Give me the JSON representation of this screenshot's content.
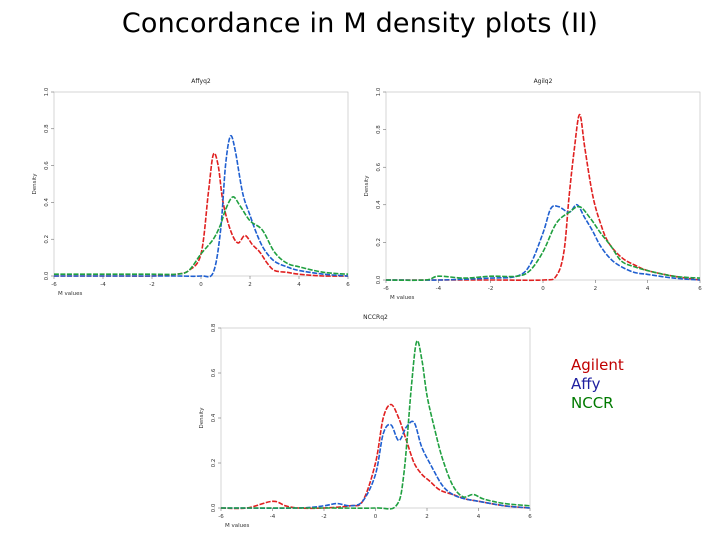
{
  "slide": {
    "title": "Concordance in M density plots (II)"
  },
  "legend": {
    "items": [
      {
        "label": "Agilent",
        "color": "#c00000"
      },
      {
        "label": "Affy",
        "color": "#2020a0"
      },
      {
        "label": "NCCR",
        "color": "#007a00"
      }
    ]
  },
  "colors": {
    "agilent": "#e02020",
    "affy": "#1f5fd0",
    "nccr": "#20a040"
  },
  "chart_data": [
    {
      "type": "line",
      "title": "Affyq2",
      "xlabel": "M values",
      "ylabel": "Density",
      "xlim": [
        -6,
        6
      ],
      "ylim": [
        0,
        1.0
      ],
      "xticks": [
        "-6",
        "-4",
        "-2",
        "0",
        "2",
        "4",
        "6"
      ],
      "yticks": [
        "0.0",
        "0.2",
        "0.4",
        "0.6",
        "0.8",
        "1.0"
      ],
      "series": [
        {
          "name": "Agilent",
          "color": "#e02020",
          "x": [
            -6,
            -5,
            -4,
            -3,
            -2,
            -1,
            -0.5,
            0,
            0.3,
            0.5,
            0.7,
            0.9,
            1.2,
            1.5,
            1.8,
            2.1,
            2.4,
            2.7,
            3.0,
            3.5,
            4,
            5,
            6
          ],
          "y": [
            0.0,
            0.0,
            0.0,
            0.0,
            0.0,
            0.01,
            0.03,
            0.12,
            0.45,
            0.66,
            0.6,
            0.4,
            0.25,
            0.18,
            0.22,
            0.17,
            0.13,
            0.07,
            0.03,
            0.02,
            0.01,
            0.0,
            0.0
          ]
        },
        {
          "name": "Affy",
          "color": "#1f5fd0",
          "x": [
            -6,
            -2,
            -1,
            0,
            0.5,
            0.8,
            1.0,
            1.2,
            1.4,
            1.7,
            2.0,
            2.3,
            2.6,
            3.0,
            3.5,
            4,
            5,
            6
          ],
          "y": [
            0.0,
            0.0,
            0.0,
            0.0,
            0.02,
            0.25,
            0.6,
            0.76,
            0.68,
            0.45,
            0.33,
            0.22,
            0.14,
            0.08,
            0.05,
            0.03,
            0.01,
            0.0
          ]
        },
        {
          "name": "NCCR",
          "color": "#20a040",
          "x": [
            -6,
            -4,
            -3,
            -2,
            -1,
            -0.5,
            0,
            0.5,
            0.8,
            1.0,
            1.3,
            1.6,
            2.0,
            2.5,
            3.0,
            3.5,
            4,
            5,
            6
          ],
          "y": [
            0.01,
            0.01,
            0.01,
            0.01,
            0.01,
            0.03,
            0.12,
            0.2,
            0.28,
            0.36,
            0.43,
            0.38,
            0.3,
            0.25,
            0.13,
            0.07,
            0.05,
            0.02,
            0.01
          ]
        }
      ]
    },
    {
      "type": "line",
      "title": "Agilq2",
      "xlabel": "M values",
      "ylabel": "Density",
      "xlim": [
        -6,
        6
      ],
      "ylim": [
        0,
        1.0
      ],
      "xticks": [
        "-6",
        "-4",
        "-2",
        "0",
        "2",
        "4",
        "6"
      ],
      "yticks": [
        "0.0",
        "0.2",
        "0.4",
        "0.6",
        "0.8",
        "1.0"
      ],
      "series": [
        {
          "name": "Agilent",
          "color": "#e02020",
          "x": [
            -6,
            -2,
            0,
            0.5,
            0.8,
            1.0,
            1.2,
            1.4,
            1.6,
            1.9,
            2.2,
            2.5,
            3.0,
            3.5,
            4,
            5,
            6
          ],
          "y": [
            0.0,
            0.0,
            0.0,
            0.02,
            0.15,
            0.45,
            0.7,
            0.88,
            0.7,
            0.45,
            0.3,
            0.2,
            0.12,
            0.08,
            0.05,
            0.02,
            0.0
          ]
        },
        {
          "name": "Affy",
          "color": "#1f5fd0",
          "x": [
            -6,
            -4,
            -2,
            -1,
            -0.5,
            0,
            0.3,
            0.6,
            1.0,
            1.3,
            1.6,
            1.9,
            2.2,
            2.6,
            3.0,
            3.5,
            4,
            5,
            6
          ],
          "y": [
            0.0,
            0.0,
            0.01,
            0.02,
            0.08,
            0.25,
            0.38,
            0.39,
            0.36,
            0.4,
            0.33,
            0.26,
            0.18,
            0.11,
            0.07,
            0.04,
            0.03,
            0.01,
            0.0
          ]
        },
        {
          "name": "NCCR",
          "color": "#20a040",
          "x": [
            -6,
            -4.5,
            -4,
            -3,
            -2,
            -1,
            -0.5,
            0,
            0.5,
            1.0,
            1.4,
            1.8,
            2.2,
            2.6,
            3.0,
            3.5,
            4,
            5,
            6
          ],
          "y": [
            0.0,
            0.0,
            0.02,
            0.01,
            0.02,
            0.02,
            0.05,
            0.15,
            0.3,
            0.36,
            0.39,
            0.33,
            0.25,
            0.18,
            0.1,
            0.07,
            0.05,
            0.02,
            0.01
          ]
        }
      ]
    },
    {
      "type": "line",
      "title": "NCCRq2",
      "xlabel": "M values",
      "ylabel": "Density",
      "xlim": [
        -6,
        6
      ],
      "ylim": [
        0,
        0.8
      ],
      "xticks": [
        "-6",
        "-4",
        "-2",
        "0",
        "2",
        "4",
        "6"
      ],
      "yticks": [
        "0.0",
        "0.2",
        "0.4",
        "0.6",
        "0.8"
      ],
      "series": [
        {
          "name": "Agilent",
          "color": "#e02020",
          "x": [
            -6,
            -5,
            -4,
            -3.5,
            -3,
            -2,
            -1,
            -0.5,
            0,
            0.3,
            0.6,
            0.9,
            1.2,
            1.5,
            1.8,
            2.1,
            2.5,
            3.0,
            3.5,
            4,
            5,
            6
          ],
          "y": [
            0.0,
            0.0,
            0.03,
            0.01,
            0.0,
            0.0,
            0.01,
            0.03,
            0.2,
            0.4,
            0.46,
            0.4,
            0.3,
            0.2,
            0.15,
            0.12,
            0.08,
            0.06,
            0.04,
            0.03,
            0.01,
            0.0
          ]
        },
        {
          "name": "Affy",
          "color": "#1f5fd0",
          "x": [
            -6,
            -3,
            -2,
            -1.5,
            -1,
            -0.5,
            0,
            0.3,
            0.6,
            0.9,
            1.2,
            1.5,
            1.8,
            2.2,
            2.6,
            3.0,
            3.5,
            4,
            5,
            6
          ],
          "y": [
            0.0,
            0.0,
            0.01,
            0.02,
            0.01,
            0.03,
            0.15,
            0.33,
            0.37,
            0.3,
            0.36,
            0.38,
            0.27,
            0.18,
            0.1,
            0.06,
            0.04,
            0.03,
            0.01,
            0.0
          ]
        },
        {
          "name": "NCCR",
          "color": "#20a040",
          "x": [
            -6,
            -2,
            0,
            0.8,
            1.1,
            1.4,
            1.6,
            1.8,
            2.0,
            2.3,
            2.6,
            3.0,
            3.4,
            3.8,
            4.2,
            5,
            6
          ],
          "y": [
            0.0,
            0.0,
            0.0,
            0.01,
            0.15,
            0.55,
            0.74,
            0.66,
            0.5,
            0.35,
            0.22,
            0.1,
            0.05,
            0.06,
            0.04,
            0.02,
            0.01
          ]
        }
      ]
    }
  ]
}
